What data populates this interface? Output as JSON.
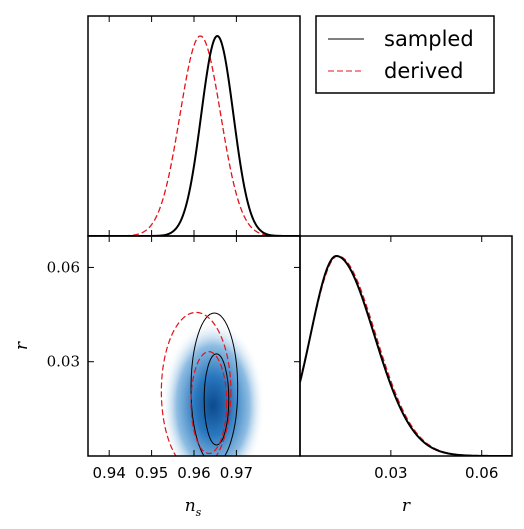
{
  "chart_data": {
    "type": "corner-plot",
    "legend": {
      "placement": "top-right",
      "entries": [
        {
          "label": "sampled",
          "color": "#000000",
          "style": "solid"
        },
        {
          "label": "derived",
          "color": "#e0141b",
          "style": "dashed"
        }
      ]
    },
    "parameters": {
      "ns": {
        "label": "n",
        "subscript": "s",
        "range": [
          0.935,
          0.985
        ],
        "ticks": [
          0.94,
          0.95,
          0.96,
          0.97
        ],
        "tick_labels": [
          "0.94",
          "0.95",
          "0.96",
          "0.97"
        ]
      },
      "r": {
        "label": "r",
        "range": [
          0.0,
          0.07
        ],
        "ticks": [
          0.03,
          0.06
        ],
        "tick_labels": [
          "0.03",
          "0.06"
        ],
        "tick_labels_left": [
          "0.03",
          "0.06"
        ]
      }
    },
    "marginal_ns": {
      "sampled": {
        "type": "gaussian",
        "mean": 0.9655,
        "sd": 0.0038
      },
      "derived": {
        "type": "gaussian",
        "mean": 0.9615,
        "sd": 0.0048
      }
    },
    "marginal_r": {
      "sampled": {
        "type": "skewed",
        "mode": 0.012,
        "width_left": 0.0085,
        "width_right": 0.0125
      },
      "derived": {
        "type": "skewed",
        "mode": 0.0125,
        "width_left": 0.009,
        "width_right": 0.0125
      }
    },
    "joint": {
      "density_center": [
        0.9645,
        0.016
      ],
      "contours": [
        {
          "series": "sampled",
          "level": "68%",
          "center": [
            0.9653,
            0.018
          ],
          "half_widths": [
            0.0029,
            0.0145
          ]
        },
        {
          "series": "sampled",
          "level": "95%",
          "center": [
            0.9648,
            0.0215
          ],
          "half_widths": [
            0.0055,
            0.024
          ]
        },
        {
          "series": "derived",
          "level": "68%",
          "center": [
            0.9635,
            0.017
          ],
          "half_widths": [
            0.0042,
            0.0162
          ]
        },
        {
          "series": "derived",
          "level": "95%",
          "center": [
            0.9605,
            0.0205
          ],
          "half_widths": [
            0.0082,
            0.0252
          ]
        }
      ]
    }
  }
}
